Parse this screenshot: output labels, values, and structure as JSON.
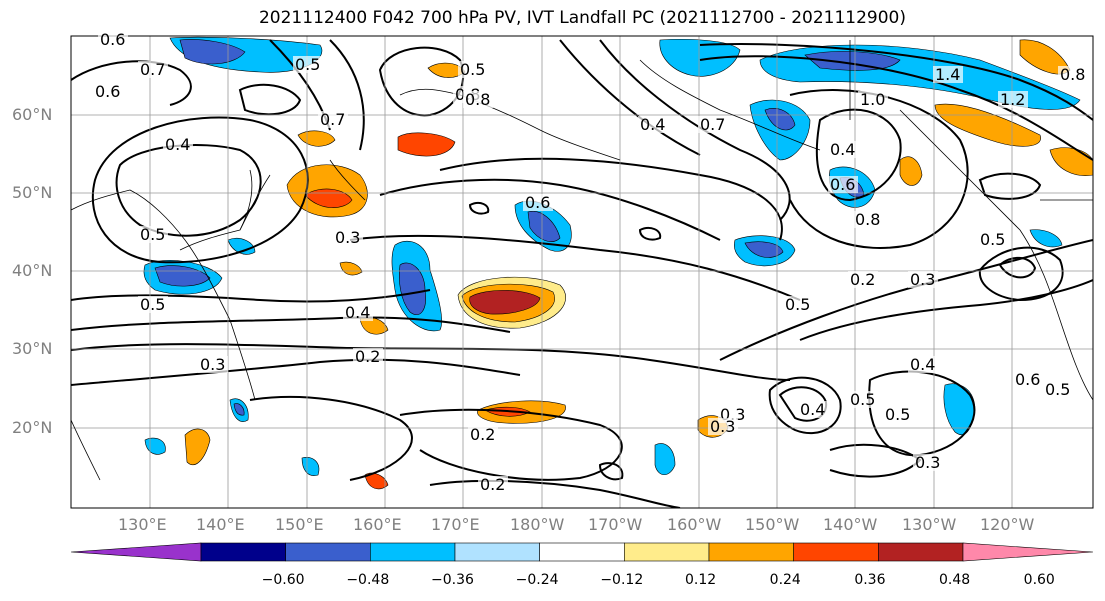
{
  "title": "2021112400 F042 700 hPa PV, IVT Landfall PC (2021112700 - 2021112900)",
  "lat_labels": [
    "60°N",
    "50°N",
    "40°N",
    "30°N",
    "20°N"
  ],
  "lon_labels": [
    "130°E",
    "140°E",
    "150°E",
    "160°E",
    "170°E",
    "180°W",
    "170°W",
    "160°W",
    "150°W",
    "140°W",
    "130°W",
    "120°W"
  ],
  "colorbar": {
    "ticks": [
      "−0.60",
      "−0.48",
      "−0.36",
      "−0.24",
      "−0.12",
      "0.12",
      "0.24",
      "0.36",
      "0.48",
      "0.60"
    ],
    "colors": [
      "#9932cc",
      "#00008b",
      "#3a5fcd",
      "#00bfff",
      "#b0e2ff",
      "#ffffff",
      "#ffec8b",
      "#ffa500",
      "#ff4500",
      "#b22222",
      "#ff88aa"
    ]
  },
  "contour_labels": [
    "0.6",
    "0.7",
    "0.6",
    "0.5",
    "0.8",
    "0.7",
    "0.5",
    "0.7",
    "0.4",
    "0.5",
    "0.4",
    "0.3",
    "0.6",
    "0.8",
    "0.4",
    "0.5",
    "0.3",
    "0.2",
    "0.3",
    "0.6",
    "0.5",
    "0.4",
    "0.4",
    "0.5",
    "0.3",
    "0.5",
    "0.5",
    "0.4",
    "0.3",
    "0.2",
    "0.2",
    "0.3",
    "0.5",
    "0.2",
    "0.8",
    "0.6",
    "1.0",
    "1.4",
    "1.2",
    "0.8"
  ]
}
